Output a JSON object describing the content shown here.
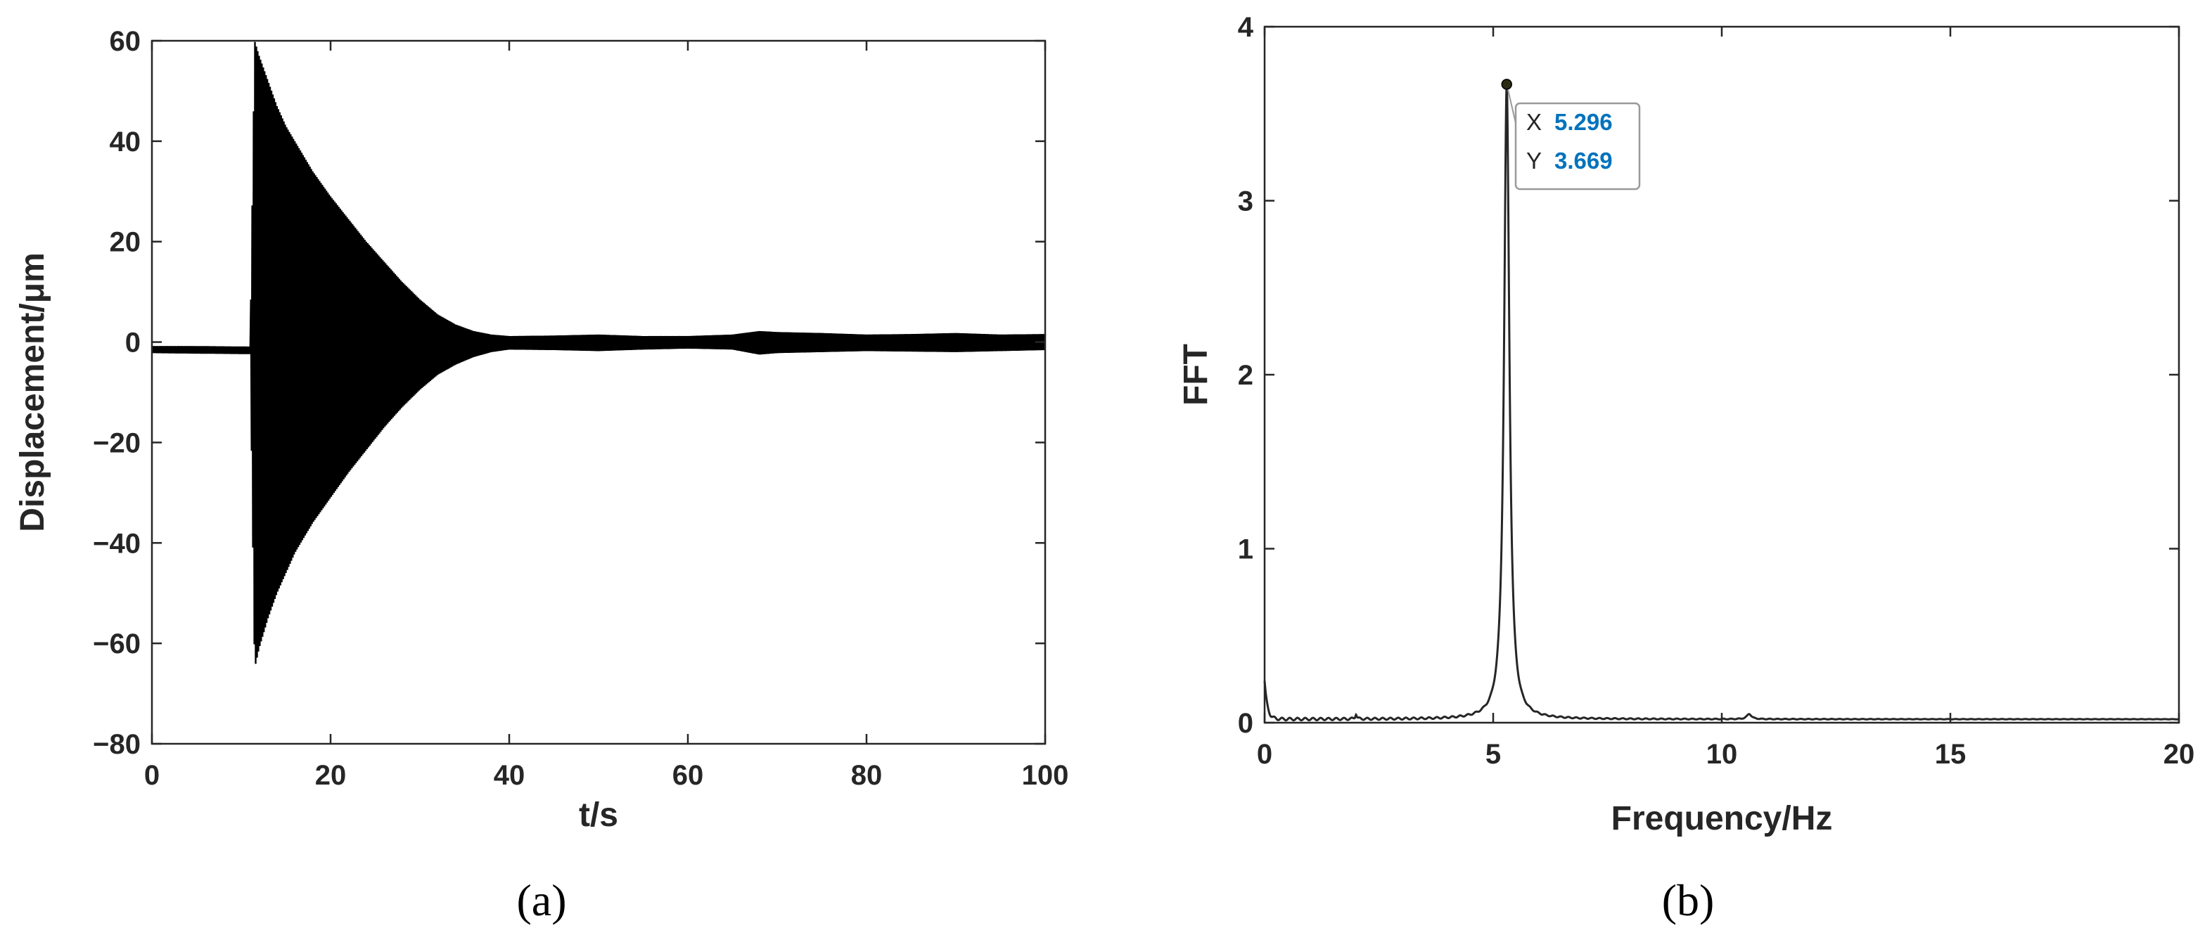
{
  "chart_data": [
    {
      "panel": "(a)",
      "type": "line",
      "title": "",
      "xlabel": "t/s",
      "ylabel": "Displacement/μm",
      "xlim": [
        0,
        100
      ],
      "ylim": [
        -80,
        60
      ],
      "xticks": [
        "0",
        "20",
        "40",
        "60",
        "80",
        "100"
      ],
      "yticks": [
        "60",
        "40",
        "20",
        "0",
        "−20",
        "−40",
        "−60",
        "−80"
      ],
      "grid": false,
      "legend": "none",
      "line_color": "#000000",
      "envelope": {
        "t": [
          0,
          5,
          11,
          11.5,
          12,
          13,
          14,
          15,
          16,
          18,
          20,
          22,
          24,
          26,
          28,
          30,
          32,
          34,
          36,
          38,
          40,
          45,
          50,
          55,
          60,
          65,
          68,
          70,
          75,
          80,
          85,
          90,
          95,
          100
        ],
        "upper": [
          -0.8,
          -0.8,
          -0.9,
          60,
          57,
          52,
          47,
          43,
          40,
          34,
          29,
          24.5,
          20,
          16,
          12,
          8.5,
          5.5,
          3.5,
          2.2,
          1.5,
          1.2,
          1.3,
          1.5,
          1.2,
          1.2,
          1.5,
          2.2,
          2,
          1.8,
          1.5,
          1.6,
          1.8,
          1.5,
          1.6
        ],
        "lower": [
          -2.2,
          -2.3,
          -2.4,
          -65,
          -61,
          -55,
          -50,
          -46,
          -42,
          -36,
          -31,
          -26,
          -21.5,
          -17,
          -13,
          -9.5,
          -6.5,
          -4.5,
          -3,
          -2,
          -1.5,
          -1.6,
          -1.8,
          -1.5,
          -1.3,
          -1.5,
          -2.5,
          -2.2,
          -2,
          -1.8,
          -1.9,
          -2,
          -1.8,
          -1.6
        ]
      }
    },
    {
      "panel": "(b)",
      "type": "line",
      "title": "",
      "xlabel": "Frequency/Hz",
      "ylabel": "FFT",
      "xlim": [
        0,
        20
      ],
      "ylim": [
        0,
        4
      ],
      "xticks": [
        "0",
        "5",
        "10",
        "15",
        "20"
      ],
      "yticks": [
        "4",
        "3",
        "2",
        "1",
        "0"
      ],
      "grid": false,
      "legend": "none",
      "line_color": "#262626",
      "spectrum": {
        "peak_frequency": 5.296,
        "peak_value": 3.669,
        "baseline": 0.02,
        "peak_width": 0.07,
        "extra_peaks": [
          {
            "f": 2.0,
            "a": 0.03,
            "w": 0.02
          },
          {
            "f": 10.6,
            "a": 0.03,
            "w": 0.06
          }
        ],
        "dc_peak": {
          "a": 0.22,
          "decay": 0.06
        }
      },
      "datatip": {
        "x_label": "X",
        "x_value": "5.296",
        "y_label": "Y",
        "y_value": "3.669",
        "marker_color": "#2B2B12"
      }
    }
  ],
  "colors": {
    "axis": "#262626",
    "trace": "#000000",
    "datatip_value": "#0072BD",
    "datatip_border": "#999999"
  }
}
